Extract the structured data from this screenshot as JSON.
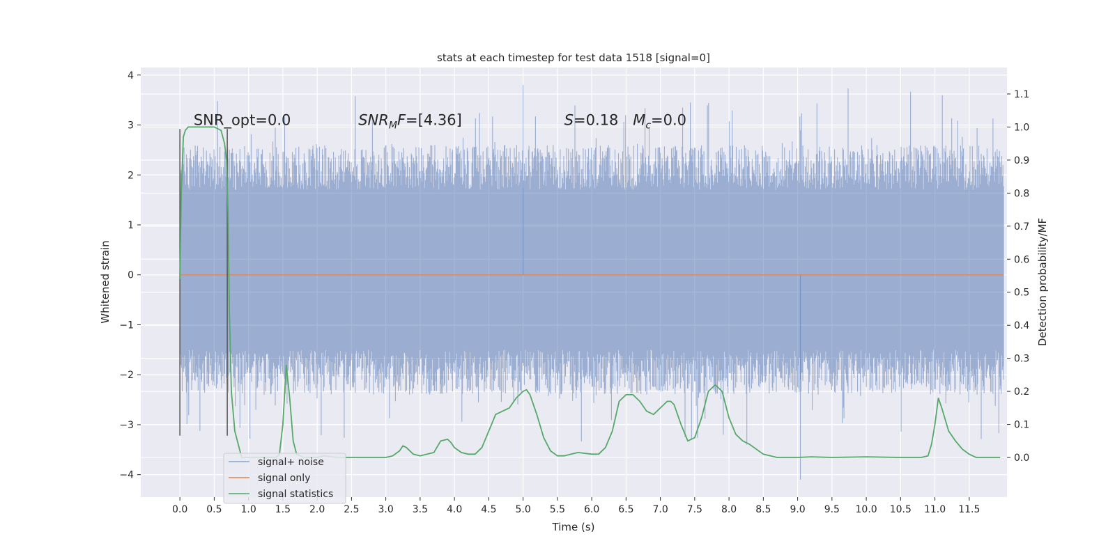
{
  "chart_data": {
    "type": "line",
    "title": "stats at each timestep for test data 1518 [signal=0]",
    "xlabel": "Time (s)",
    "ylabel": "Whitened strain",
    "y2label": "Detection probability/MF",
    "xlim": [
      -0.57,
      12.05
    ],
    "ylim": [
      -4.45,
      4.15
    ],
    "y2lim": [
      -0.12,
      1.18
    ],
    "x_ticks": [
      0.0,
      0.5,
      1.0,
      1.5,
      2.0,
      2.5,
      3.0,
      3.5,
      4.0,
      4.5,
      5.0,
      5.5,
      6.0,
      6.5,
      7.0,
      7.5,
      8.0,
      8.5,
      9.0,
      9.5,
      10.0,
      10.5,
      11.0,
      11.5
    ],
    "x_tick_labels": [
      "0.0",
      "0.5",
      "1.0",
      "1.5",
      "2.0",
      "2.5",
      "3.0",
      "3.5",
      "4.0",
      "4.5",
      "5.0",
      "5.5",
      "6.0",
      "6.5",
      "7.0",
      "7.5",
      "8.0",
      "8.5",
      "9.0",
      "9.5",
      "10.0",
      "10.5",
      "11.0",
      "11.5"
    ],
    "y_ticks": [
      -4,
      -3,
      -2,
      -1,
      0,
      1,
      2,
      3,
      4
    ],
    "y_tick_labels": [
      "−4",
      "−3",
      "−2",
      "−1",
      "0",
      "1",
      "2",
      "3",
      "4"
    ],
    "y2_ticks": [
      0.0,
      0.1,
      0.2,
      0.3,
      0.4,
      0.5,
      0.6,
      0.7,
      0.8,
      0.9,
      1.0,
      1.1
    ],
    "y2_tick_labels": [
      "0.0",
      "0.1",
      "0.2",
      "0.3",
      "0.4",
      "0.5",
      "0.6",
      "0.7",
      "0.8",
      "0.9",
      "1.0",
      "1.1"
    ],
    "grid": true,
    "legend_position": "lower-left",
    "series": [
      {
        "name": "signal+ noise",
        "color": "#4c72b0",
        "axis": "left",
        "description_only": true,
        "x_range": [
          0.0,
          12.0
        ],
        "envelope_core": [
          -1.5,
          1.7
        ],
        "spike_extremes": {
          "max": 3.8,
          "min": -4.1,
          "max_at": 5.0,
          "min_at": 9.04
        }
      },
      {
        "name": "signal only",
        "color": "#dd8452",
        "axis": "left",
        "x": [
          0.0,
          12.0
        ],
        "y": [
          0.0,
          0.0
        ]
      },
      {
        "name": "signal statistics",
        "color": "#55a868",
        "axis": "right",
        "x": [
          0.0,
          0.02,
          0.05,
          0.08,
          0.12,
          0.18,
          0.25,
          0.35,
          0.5,
          0.6,
          0.65,
          0.68,
          0.7,
          0.72,
          0.75,
          0.8,
          0.9,
          1.0,
          1.2,
          1.4,
          1.45,
          1.5,
          1.55,
          1.6,
          1.65,
          1.7,
          1.8,
          2.0,
          2.1,
          2.3,
          2.5,
          3.0,
          3.1,
          3.2,
          3.25,
          3.3,
          3.4,
          3.5,
          3.7,
          3.8,
          3.9,
          3.95,
          4.0,
          4.1,
          4.2,
          4.3,
          4.4,
          4.5,
          4.6,
          4.7,
          4.8,
          4.9,
          5.0,
          5.05,
          5.1,
          5.2,
          5.3,
          5.4,
          5.5,
          5.6,
          5.7,
          5.8,
          6.0,
          6.1,
          6.2,
          6.3,
          6.4,
          6.5,
          6.6,
          6.7,
          6.8,
          6.9,
          7.0,
          7.1,
          7.15,
          7.2,
          7.3,
          7.4,
          7.5,
          7.6,
          7.7,
          7.8,
          7.85,
          7.9,
          8.0,
          8.1,
          8.2,
          8.3,
          8.5,
          8.7,
          9.0,
          9.2,
          9.5,
          10.0,
          10.5,
          10.8,
          10.9,
          10.95,
          11.0,
          11.05,
          11.1,
          11.2,
          11.3,
          11.4,
          11.5,
          11.6,
          11.8,
          11.95
        ],
        "y": [
          0.54,
          0.8,
          0.97,
          0.99,
          1.0,
          1.0,
          1.0,
          1.0,
          1.0,
          0.99,
          0.95,
          0.9,
          0.75,
          0.45,
          0.2,
          0.08,
          0.0,
          0.0,
          0.0,
          0.0,
          0.01,
          0.1,
          0.28,
          0.18,
          0.05,
          0.01,
          0.0,
          0.0,
          0.005,
          0.0,
          0.0,
          0.0,
          0.005,
          0.02,
          0.035,
          0.03,
          0.01,
          0.005,
          0.015,
          0.05,
          0.055,
          0.045,
          0.03,
          0.015,
          0.01,
          0.01,
          0.03,
          0.08,
          0.13,
          0.14,
          0.15,
          0.18,
          0.2,
          0.205,
          0.19,
          0.13,
          0.06,
          0.02,
          0.005,
          0.005,
          0.01,
          0.015,
          0.01,
          0.01,
          0.03,
          0.08,
          0.17,
          0.19,
          0.19,
          0.17,
          0.14,
          0.13,
          0.15,
          0.17,
          0.17,
          0.16,
          0.1,
          0.05,
          0.06,
          0.12,
          0.2,
          0.22,
          0.21,
          0.2,
          0.12,
          0.07,
          0.05,
          0.04,
          0.01,
          0.0,
          0.0,
          0.002,
          0.0,
          0.002,
          0.0,
          0.0,
          0.005,
          0.04,
          0.1,
          0.18,
          0.15,
          0.08,
          0.05,
          0.025,
          0.01,
          0.0,
          0.0,
          0.0
        ]
      }
    ],
    "vlines": [
      {
        "x": 0.0,
        "y_range": [
          -3.22,
          2.92
        ],
        "color": "#555555"
      },
      {
        "x": 0.69,
        "y_range": [
          -3.22,
          2.92
        ],
        "color": "#555555"
      }
    ],
    "annotations": [
      {
        "text": "SNR_opt=0.0",
        "x": 0.2,
        "y": 3.0
      },
      {
        "text": "SNR",
        "sub": "M",
        "tail": "F=[4.36]",
        "x": 2.6,
        "y": 3.0
      },
      {
        "text": "S",
        "tail": "=0.18",
        "x": 5.6,
        "y": 3.0
      },
      {
        "text": "M",
        "sub": "c",
        "tail": "=0.0",
        "x": 6.6,
        "y": 3.0
      }
    ]
  }
}
